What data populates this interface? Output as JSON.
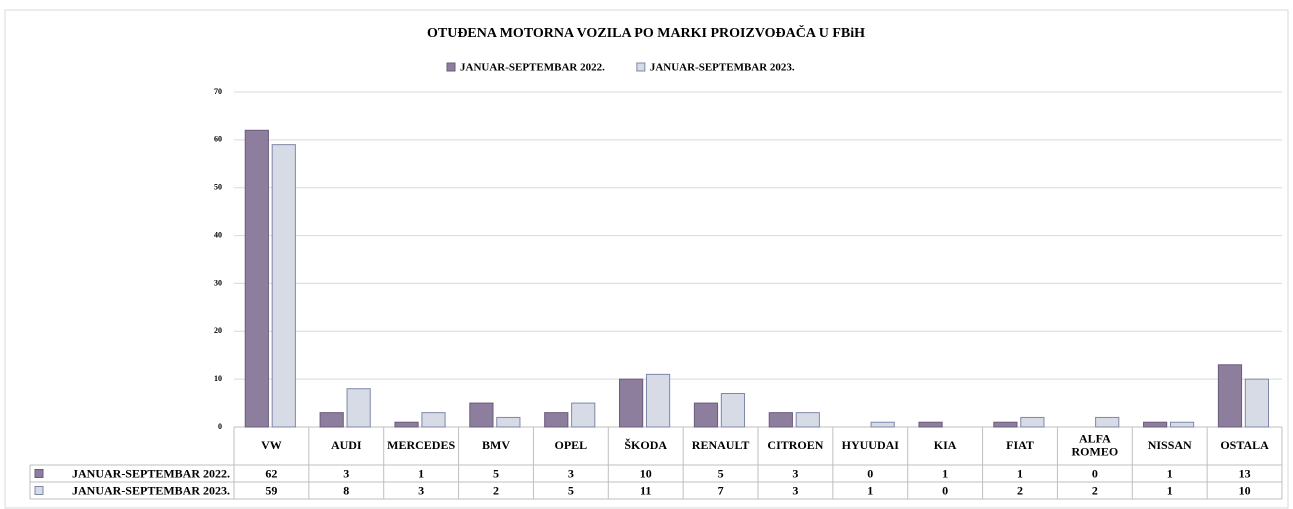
{
  "chart_data": {
    "type": "bar",
    "title": "OTUĐENA MOTORNA VOZILA PO MARKI PROIZVOĐAČA U FBiH",
    "categories": [
      "VW",
      "AUDI",
      "MERCEDES",
      "BMV",
      "OPEL",
      "ŠKODA",
      "RENAULT",
      "CITROEN",
      "HYUUDAI",
      "KIA",
      "FIAT",
      "ALFA ROMEO",
      "NISSAN",
      "OSTALA"
    ],
    "series": [
      {
        "name": "JANUAR-SEPTEMBAR 2022.",
        "color": "#8c7e9c",
        "values": [
          62,
          3,
          1,
          5,
          3,
          10,
          5,
          3,
          0,
          1,
          1,
          0,
          1,
          13
        ]
      },
      {
        "name": "JANUAR-SEPTEMBAR 2023.",
        "color": "#d7dbe6",
        "values": [
          59,
          8,
          3,
          2,
          5,
          11,
          7,
          3,
          1,
          0,
          2,
          2,
          1,
          10
        ]
      }
    ],
    "ylim": [
      0,
      70
    ],
    "yticks": [
      0,
      10,
      20,
      30,
      40,
      50,
      60,
      70
    ],
    "grid": true,
    "legend": "top"
  }
}
